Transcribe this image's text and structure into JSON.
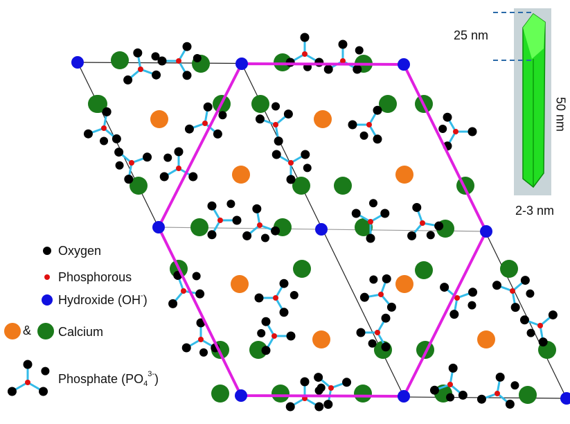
{
  "scale": {
    "length": "25 nm",
    "height": "50 nm",
    "width": "2-3 nm"
  },
  "legend": {
    "oxygen": "Oxygen",
    "phosphorous": "Phosphorous",
    "hydroxide": {
      "text": "Hydroxide (OH",
      "sup": "-",
      "close": ")"
    },
    "ampersand": "&",
    "calcium": "Calcium",
    "phosphate": {
      "text": "Phosphate (PO",
      "sub": "4",
      "sup": "3-",
      "close": ")"
    }
  }
}
